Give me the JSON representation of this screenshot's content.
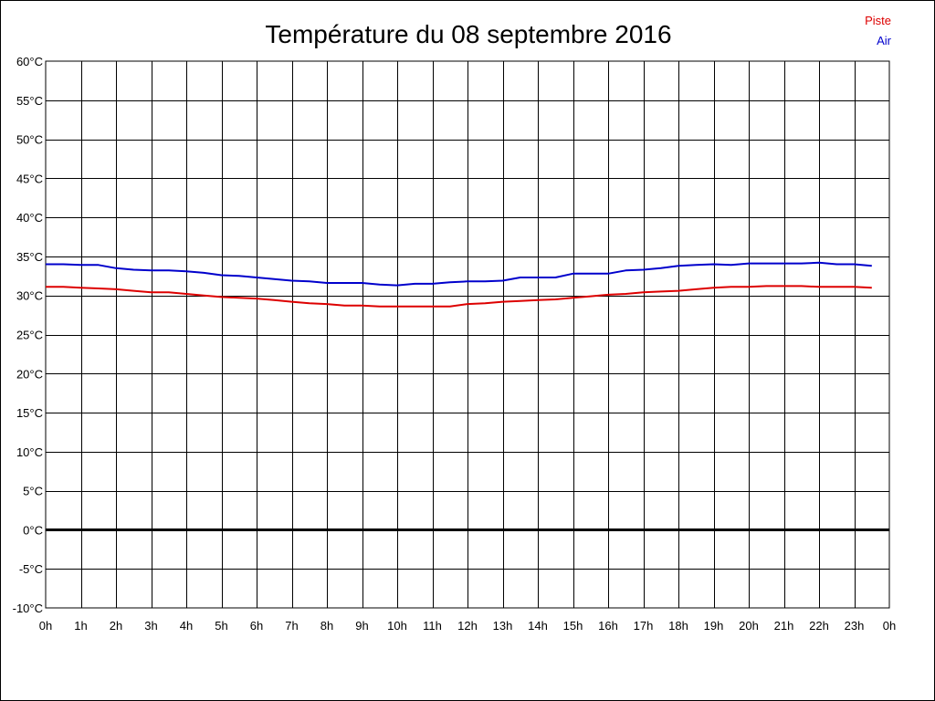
{
  "chart_data": {
    "type": "line",
    "title": "Température du 08 septembre 2016",
    "xlabel": "",
    "ylabel": "",
    "x_tick_labels": [
      "0h",
      "1h",
      "2h",
      "3h",
      "4h",
      "5h",
      "6h",
      "7h",
      "8h",
      "9h",
      "10h",
      "11h",
      "12h",
      "13h",
      "14h",
      "15h",
      "16h",
      "17h",
      "18h",
      "19h",
      "20h",
      "21h",
      "22h",
      "23h",
      "0h"
    ],
    "y_tick_labels": [
      "60°C",
      "55°C",
      "50°C",
      "45°C",
      "40°C",
      "35°C",
      "30°C",
      "25°C",
      "20°C",
      "15°C",
      "10°C",
      "5°C",
      "0°C",
      "-5°C",
      "-10°C"
    ],
    "xlim": [
      0,
      24
    ],
    "ylim": [
      -10,
      60
    ],
    "y_step": 5,
    "grid": true,
    "legend_position": "top-right",
    "zero_line": true,
    "series": [
      {
        "name": "Piste",
        "color": "#dd0000",
        "x": [
          0,
          0.5,
          1,
          1.5,
          2,
          2.5,
          3,
          3.5,
          4,
          4.5,
          5,
          5.5,
          6,
          6.5,
          7,
          7.5,
          8,
          8.5,
          9,
          9.5,
          10,
          10.5,
          11,
          11.5,
          12,
          12.5,
          13,
          13.5,
          14,
          14.5,
          15,
          15.5,
          16,
          16.5,
          17,
          17.5,
          18,
          18.5,
          19,
          19.5,
          20,
          20.5,
          21,
          21.5,
          22,
          22.5,
          23,
          23.5
        ],
        "values": [
          31.1,
          31.1,
          31.0,
          30.9,
          30.8,
          30.6,
          30.4,
          30.4,
          30.2,
          30.0,
          29.8,
          29.7,
          29.6,
          29.4,
          29.2,
          29.0,
          28.9,
          28.7,
          28.7,
          28.6,
          28.6,
          28.6,
          28.6,
          28.6,
          28.9,
          29.0,
          29.2,
          29.3,
          29.4,
          29.5,
          29.7,
          29.9,
          30.1,
          30.2,
          30.4,
          30.5,
          30.6,
          30.8,
          31.0,
          31.1,
          31.1,
          31.2,
          31.2,
          31.2,
          31.1,
          31.1,
          31.1,
          31.0
        ]
      },
      {
        "name": "Air",
        "color": "#0000cc",
        "x": [
          0,
          0.5,
          1,
          1.5,
          2,
          2.5,
          3,
          3.5,
          4,
          4.5,
          5,
          5.5,
          6,
          6.5,
          7,
          7.5,
          8,
          8.5,
          9,
          9.5,
          10,
          10.5,
          11,
          11.5,
          12,
          12.5,
          13,
          13.5,
          14,
          14.5,
          15,
          15.5,
          16,
          16.5,
          17,
          17.5,
          18,
          18.5,
          19,
          19.5,
          20,
          20.5,
          21,
          21.5,
          22,
          22.5,
          23,
          23.5
        ],
        "values": [
          34.0,
          34.0,
          33.9,
          33.9,
          33.5,
          33.3,
          33.2,
          33.2,
          33.1,
          32.9,
          32.6,
          32.5,
          32.3,
          32.1,
          31.9,
          31.8,
          31.6,
          31.6,
          31.6,
          31.4,
          31.3,
          31.5,
          31.5,
          31.7,
          31.8,
          31.8,
          31.9,
          32.3,
          32.3,
          32.3,
          32.8,
          32.8,
          32.8,
          33.2,
          33.3,
          33.5,
          33.8,
          33.9,
          34.0,
          33.9,
          34.1,
          34.1,
          34.1,
          34.1,
          34.2,
          34.0,
          34.0,
          33.8
        ]
      }
    ]
  }
}
